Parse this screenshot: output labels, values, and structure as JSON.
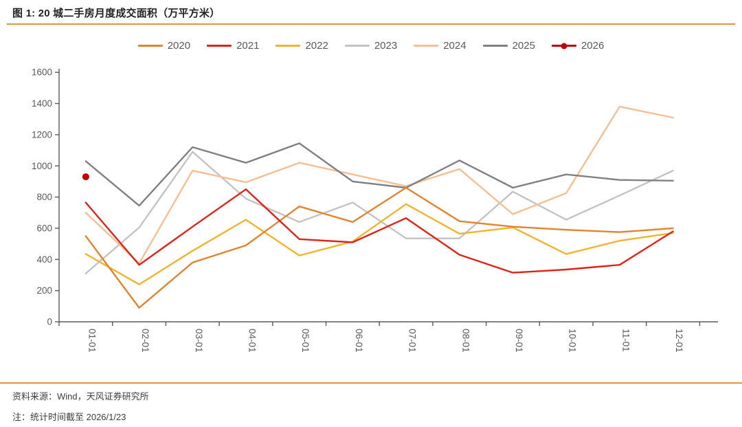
{
  "header": {
    "title": "图 1: 20 城二手房月度成交面积（万平方米）"
  },
  "footer": {
    "source": "资料来源：Wind，天风证券研究所",
    "note": "注：统计时间截至 2026/1/23"
  },
  "colors": {
    "accent_rule": "#E8923B",
    "axis_line": "#595959",
    "axis_text": "#595959",
    "title_text": "#222222",
    "footer_text": "#3D3D3D"
  },
  "chart_data": {
    "type": "line",
    "title": "20 城二手房月度成交面积（万平方米）",
    "categories": [
      "01-01",
      "02-01",
      "03-01",
      "04-01",
      "05-01",
      "06-01",
      "07-01",
      "08-01",
      "09-01",
      "10-01",
      "11-01",
      "12-01"
    ],
    "series": [
      {
        "name": "2020",
        "color": "#E4832D",
        "values": [
          550,
          90,
          380,
          490,
          740,
          640,
          860,
          645,
          610,
          590,
          575,
          600
        ]
      },
      {
        "name": "2021",
        "color": "#E02318",
        "values": [
          765,
          365,
          610,
          850,
          530,
          510,
          665,
          430,
          315,
          335,
          365,
          580
        ]
      },
      {
        "name": "2022",
        "color": "#F2B42C",
        "values": [
          435,
          240,
          455,
          655,
          425,
          515,
          755,
          565,
          605,
          435,
          520,
          570
        ]
      },
      {
        "name": "2023",
        "color": "#C3C3C3",
        "values": [
          310,
          605,
          1090,
          790,
          640,
          765,
          535,
          535,
          835,
          655,
          810,
          970
        ]
      },
      {
        "name": "2024",
        "color": "#F6BE92",
        "values": [
          700,
          375,
          970,
          895,
          1020,
          945,
          870,
          980,
          690,
          825,
          1380,
          1310
        ]
      },
      {
        "name": "2025",
        "color": "#808080",
        "values": [
          1030,
          745,
          1120,
          1020,
          1145,
          900,
          860,
          1035,
          860,
          945,
          910,
          905
        ]
      },
      {
        "name": "2026",
        "color": "#C00000",
        "marker": true,
        "values": [
          930,
          null,
          null,
          null,
          null,
          null,
          null,
          null,
          null,
          null,
          null,
          null
        ]
      }
    ],
    "ylim": [
      0,
      1600
    ],
    "ytick_step": 200,
    "legend_position": "top",
    "grid": false
  }
}
